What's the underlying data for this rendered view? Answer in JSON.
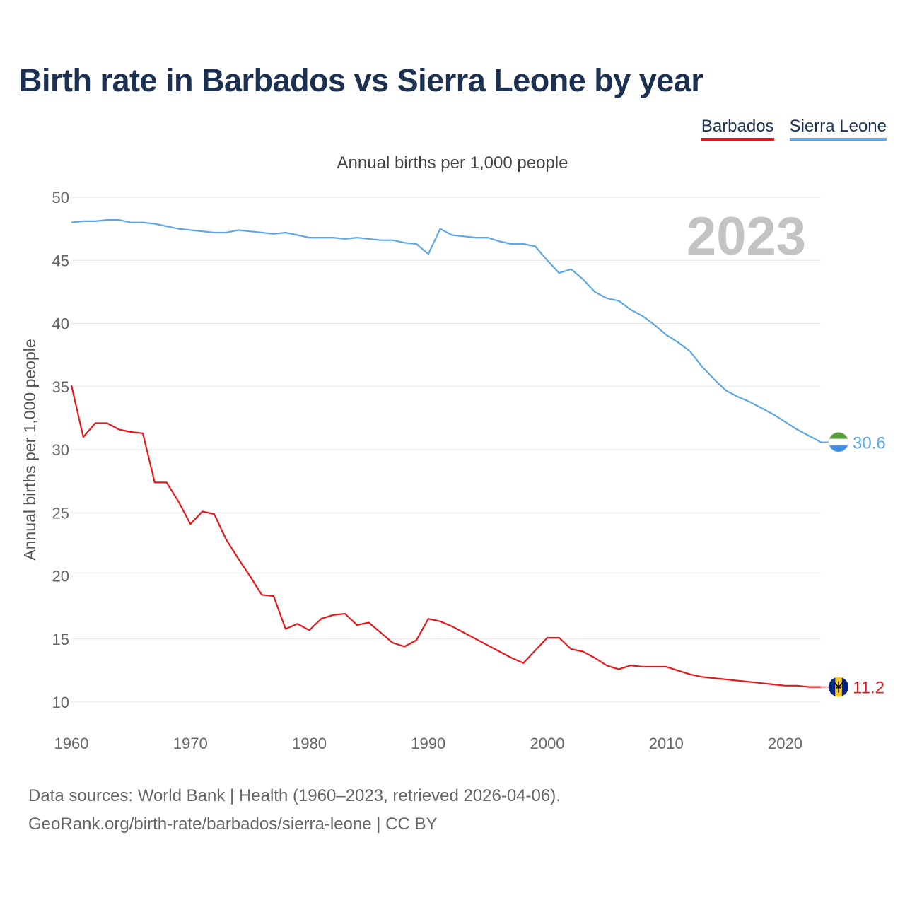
{
  "title": "Birth rate in Barbados vs Sierra Leone by year",
  "legend": {
    "barbados": "Barbados",
    "sierra_leone": "Sierra Leone"
  },
  "subtitle": "Annual births per 1,000 people",
  "source_line1": "Data sources: World Bank | Health (1960–2023, retrieved 2026-04-06).",
  "source_line2": "GeoRank.org/birth-rate/barbados/sierra-leone | CC BY",
  "colors": {
    "barbados": "#e8171c",
    "sierra_leone": "#5ea7e6",
    "grid": "#e6e6e6",
    "year_watermark": "#c3c3c3"
  },
  "chart_data": {
    "type": "line",
    "title": "Birth rate in Barbados vs Sierra Leone by year",
    "xlabel": "",
    "ylabel": "Annual births per 1,000 people",
    "year_label": "2023",
    "xlim": [
      1960,
      2023
    ],
    "ylim": [
      10,
      50
    ],
    "x_ticks": [
      1960,
      1970,
      1980,
      1990,
      2000,
      2010,
      2020
    ],
    "y_ticks": [
      10,
      15,
      20,
      25,
      30,
      35,
      40,
      45,
      50
    ],
    "x": [
      1960,
      1961,
      1962,
      1963,
      1964,
      1965,
      1966,
      1967,
      1968,
      1969,
      1970,
      1971,
      1972,
      1973,
      1974,
      1975,
      1976,
      1977,
      1978,
      1979,
      1980,
      1981,
      1982,
      1983,
      1984,
      1985,
      1986,
      1987,
      1988,
      1989,
      1990,
      1991,
      1992,
      1993,
      1994,
      1995,
      1996,
      1997,
      1998,
      1999,
      2000,
      2001,
      2002,
      2003,
      2004,
      2005,
      2006,
      2007,
      2008,
      2009,
      2010,
      2011,
      2012,
      2013,
      2014,
      2015,
      2016,
      2017,
      2018,
      2019,
      2020,
      2021,
      2022,
      2023
    ],
    "series": [
      {
        "name": "Barbados",
        "end_label": "11.2",
        "values": [
          35.1,
          31.0,
          32.1,
          32.1,
          31.6,
          31.4,
          31.3,
          27.4,
          27.4,
          25.9,
          24.1,
          25.1,
          24.9,
          22.9,
          21.4,
          20.0,
          18.5,
          18.4,
          15.8,
          16.2,
          15.7,
          16.6,
          16.9,
          17.0,
          16.1,
          16.3,
          15.5,
          14.7,
          14.4,
          14.9,
          16.6,
          16.4,
          16.0,
          15.5,
          15.0,
          14.5,
          14.0,
          13.5,
          13.1,
          14.1,
          15.1,
          15.1,
          14.2,
          14.0,
          13.5,
          12.9,
          12.6,
          12.9,
          12.8,
          12.8,
          12.8,
          12.5,
          12.2,
          12.0,
          11.9,
          11.8,
          11.7,
          11.6,
          11.5,
          11.4,
          11.3,
          11.3,
          11.2,
          11.2
        ]
      },
      {
        "name": "Sierra Leone",
        "end_label": "30.6",
        "values": [
          48.0,
          48.1,
          48.1,
          48.2,
          48.2,
          48.0,
          48.0,
          47.9,
          47.7,
          47.5,
          47.4,
          47.3,
          47.2,
          47.2,
          47.4,
          47.3,
          47.2,
          47.1,
          47.2,
          47.0,
          46.8,
          46.8,
          46.8,
          46.7,
          46.8,
          46.7,
          46.6,
          46.6,
          46.4,
          46.3,
          45.5,
          47.5,
          47.0,
          46.9,
          46.8,
          46.8,
          46.5,
          46.3,
          46.3,
          46.1,
          45.0,
          44.0,
          44.3,
          43.5,
          42.5,
          42.0,
          41.8,
          41.1,
          40.6,
          39.9,
          39.1,
          38.5,
          37.8,
          36.6,
          35.6,
          34.7,
          34.2,
          33.8,
          33.3,
          32.8,
          32.2,
          31.6,
          31.1,
          30.6
        ]
      }
    ]
  }
}
